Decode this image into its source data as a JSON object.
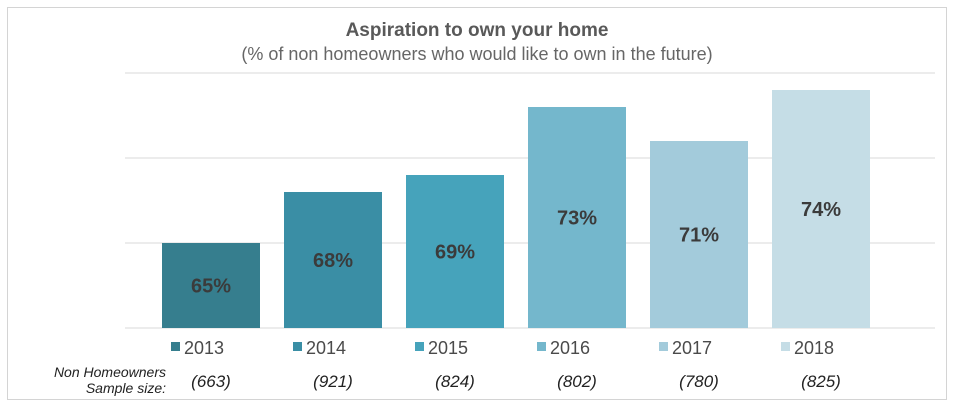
{
  "chart_data": {
    "type": "bar",
    "title": "Aspiration to own your home",
    "subtitle": "(% of non homeowners who would like to own in the future)",
    "categories": [
      "2013",
      "2014",
      "2015",
      "2016",
      "2017",
      "2018"
    ],
    "values": [
      65,
      68,
      69,
      73,
      71,
      74
    ],
    "value_labels": [
      "65%",
      "68%",
      "69%",
      "73%",
      "71%",
      "74%"
    ],
    "colors": [
      "#367e8e",
      "#3a8ea5",
      "#46a3bb",
      "#74b7cc",
      "#a3cbdb",
      "#c5dde6"
    ],
    "ylim": [
      60,
      75
    ],
    "grid": true,
    "legend_position": "bottom"
  },
  "sample": {
    "label_line1": "Non Homeowners",
    "label_line2": "Sample size:",
    "values": [
      "(663)",
      "(921)",
      "(824)",
      "(802)",
      "(780)",
      "(825)"
    ]
  }
}
